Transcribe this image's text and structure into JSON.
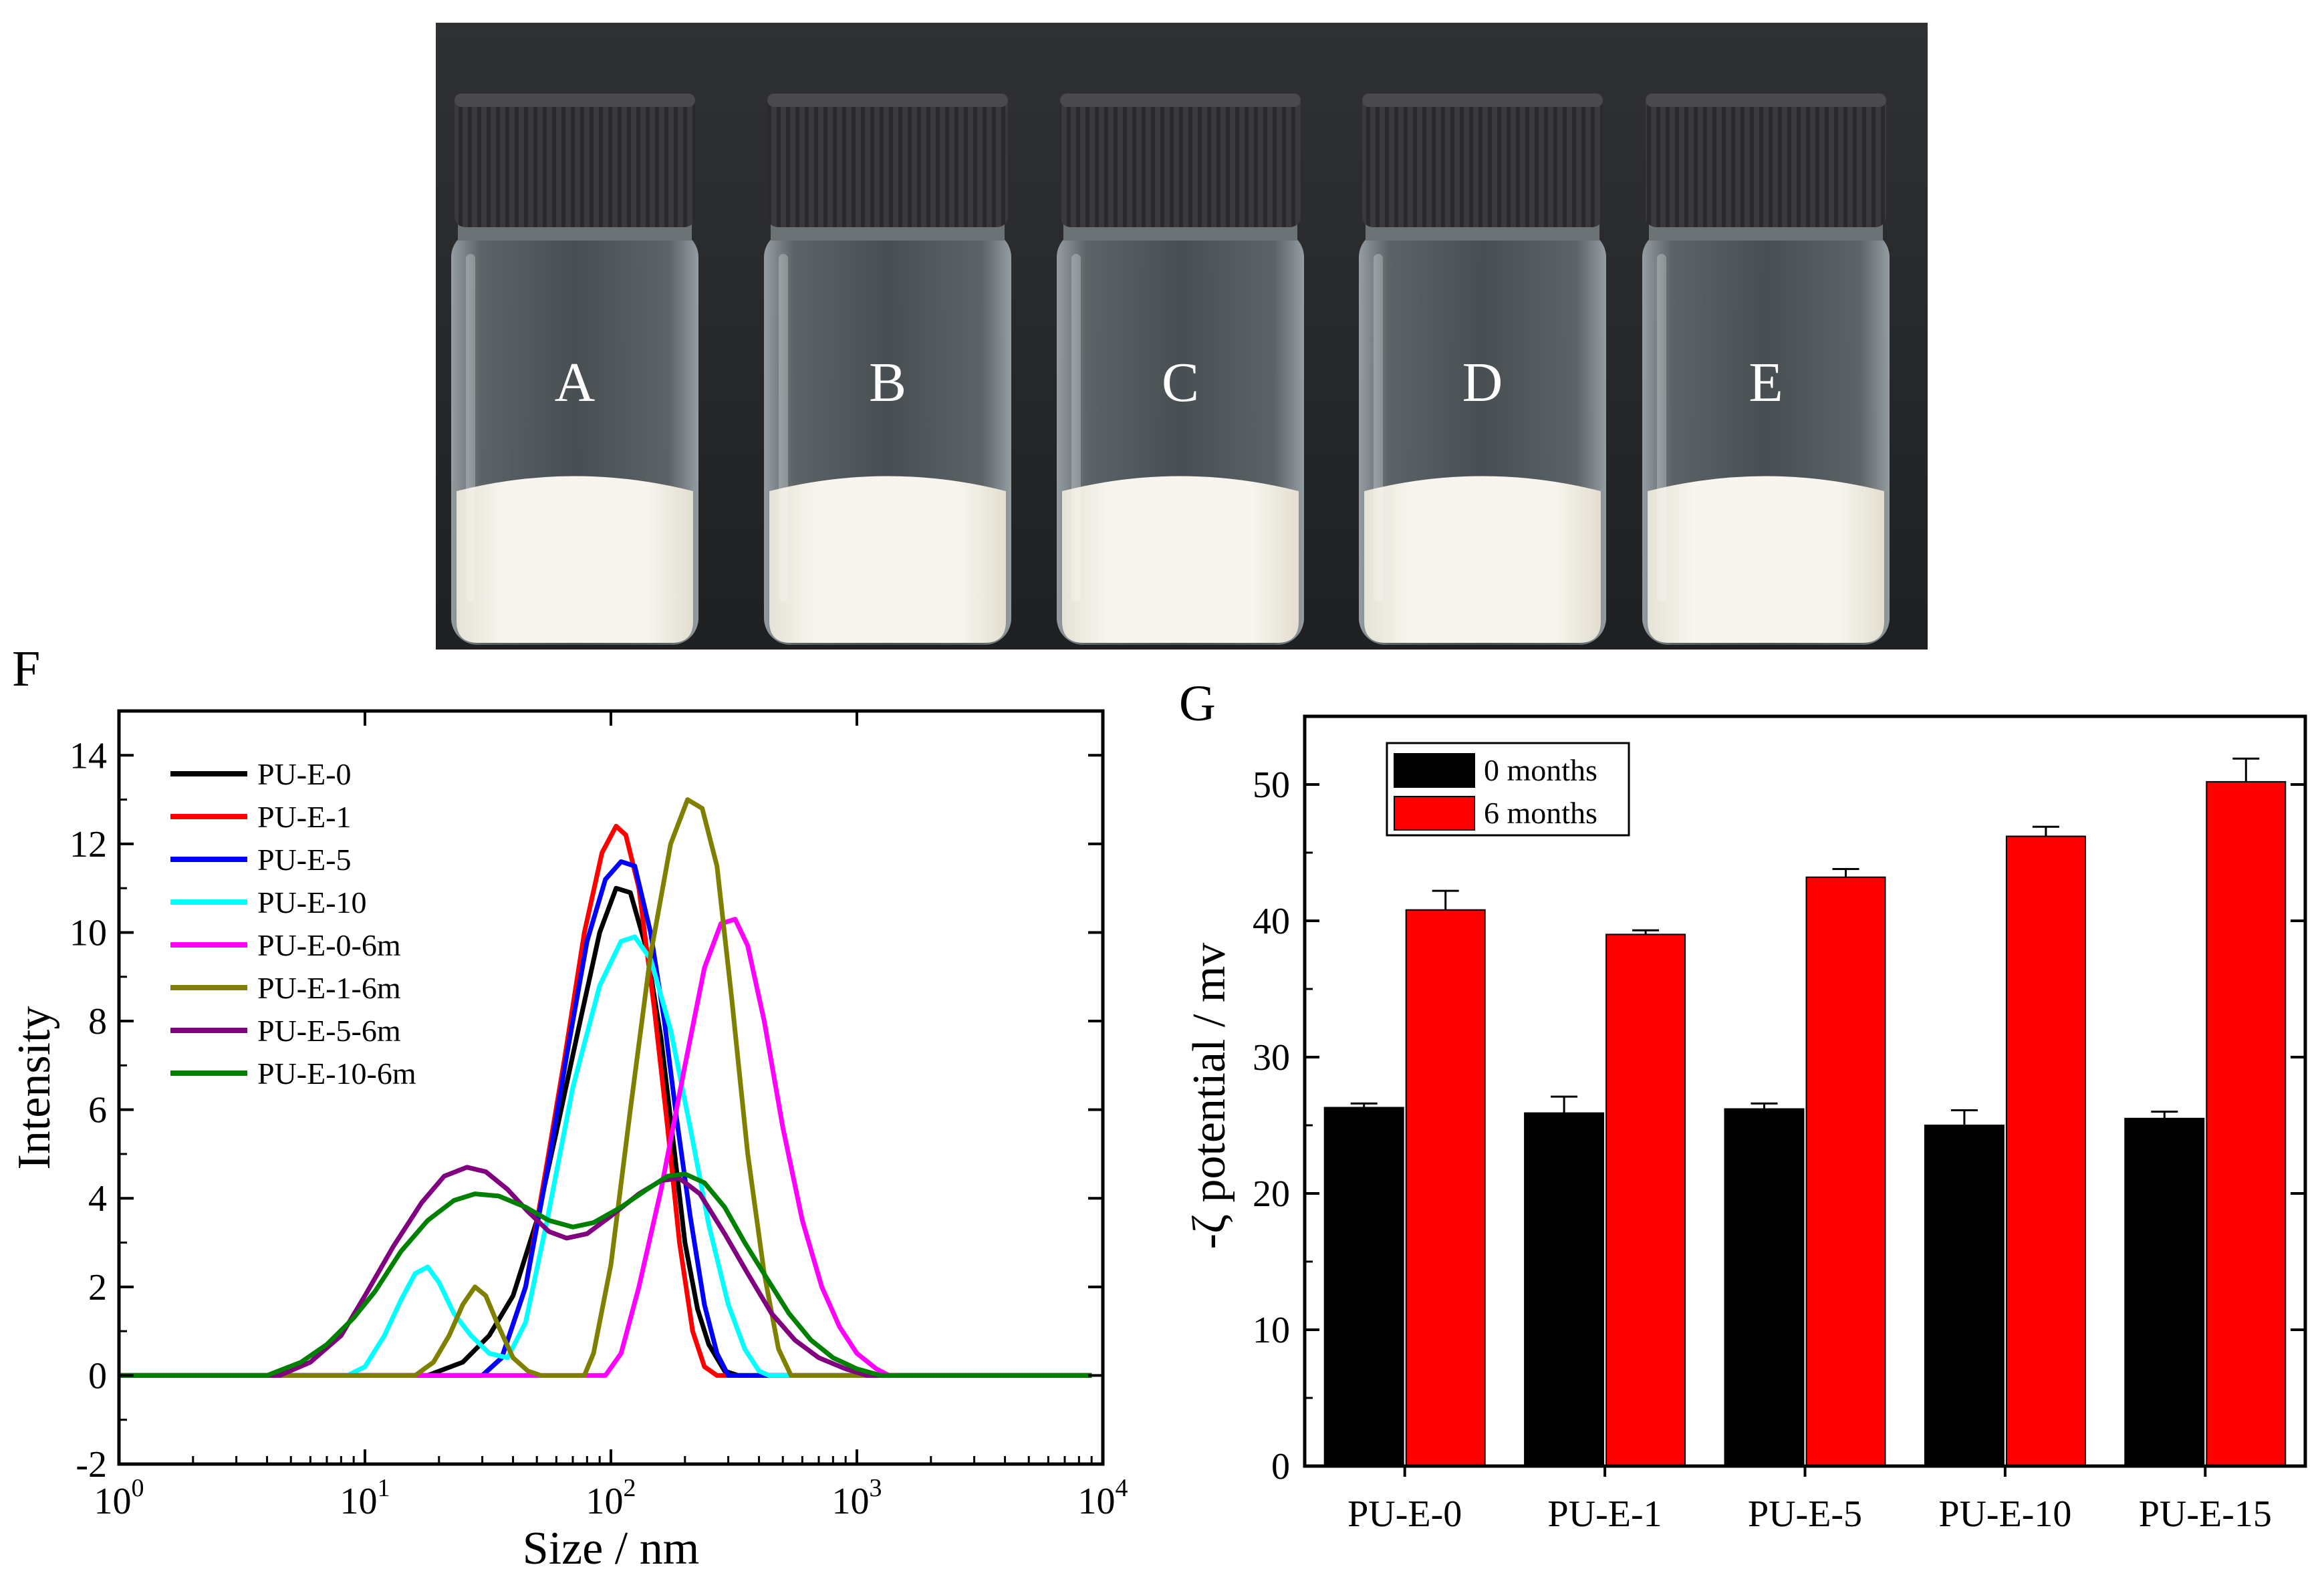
{
  "photo": {
    "vial_labels": [
      "A",
      "B",
      "C",
      "D",
      "E"
    ]
  },
  "panel_labels": {
    "f": "F",
    "g": "G"
  },
  "chart_data": [
    {
      "type": "line",
      "panel": "F",
      "xlabel": "Size / nm",
      "ylabel": "Intensity",
      "x_scale": "log",
      "xlim": [
        1,
        10000
      ],
      "ylim": [
        -2,
        15
      ],
      "x_ticks": [
        {
          "value": 1,
          "base": "10",
          "exp": "0"
        },
        {
          "value": 10,
          "base": "10",
          "exp": "1"
        },
        {
          "value": 100,
          "base": "10",
          "exp": "2"
        },
        {
          "value": 1000,
          "base": "10",
          "exp": "3"
        },
        {
          "value": 10000,
          "base": "10",
          "exp": "4"
        }
      ],
      "y_ticks": [
        "-2",
        "0",
        "2",
        "4",
        "6",
        "8",
        "10",
        "12",
        "14"
      ],
      "legend_position": "top-left",
      "series": [
        {
          "name": "PU-E-0",
          "color": "#000000",
          "points": [
            [
              1,
              0
            ],
            [
              18,
              0
            ],
            [
              25,
              0.3
            ],
            [
              32,
              0.9
            ],
            [
              40,
              1.8
            ],
            [
              50,
              3.5
            ],
            [
              60,
              5.5
            ],
            [
              75,
              8
            ],
            [
              90,
              10
            ],
            [
              105,
              11
            ],
            [
              120,
              10.9
            ],
            [
              140,
              9.6
            ],
            [
              160,
              7.6
            ],
            [
              180,
              5.2
            ],
            [
              200,
              3
            ],
            [
              225,
              1.5
            ],
            [
              250,
              0.7
            ],
            [
              290,
              0.1
            ],
            [
              330,
              0
            ],
            [
              9000,
              0
            ]
          ]
        },
        {
          "name": "PU-E-1",
          "color": "#ff0000",
          "points": [
            [
              1,
              0
            ],
            [
              30,
              0
            ],
            [
              36,
              0.4
            ],
            [
              45,
              2
            ],
            [
              55,
              4.8
            ],
            [
              65,
              7.2
            ],
            [
              78,
              10
            ],
            [
              92,
              11.8
            ],
            [
              105,
              12.4
            ],
            [
              115,
              12.2
            ],
            [
              130,
              11
            ],
            [
              150,
              8.3
            ],
            [
              170,
              5.6
            ],
            [
              190,
              3
            ],
            [
              215,
              1
            ],
            [
              240,
              0.2
            ],
            [
              270,
              0
            ],
            [
              9000,
              0
            ]
          ]
        },
        {
          "name": "PU-E-5",
          "color": "#0000ff",
          "points": [
            [
              1,
              0
            ],
            [
              30,
              0
            ],
            [
              36,
              0.4
            ],
            [
              45,
              2
            ],
            [
              55,
              4.6
            ],
            [
              66,
              7.2
            ],
            [
              80,
              9.8
            ],
            [
              95,
              11.2
            ],
            [
              110,
              11.6
            ],
            [
              125,
              11.5
            ],
            [
              145,
              10
            ],
            [
              165,
              8
            ],
            [
              185,
              5.8
            ],
            [
              210,
              3.6
            ],
            [
              240,
              1.6
            ],
            [
              270,
              0.5
            ],
            [
              300,
              0
            ],
            [
              9000,
              0
            ]
          ]
        },
        {
          "name": "PU-E-10",
          "color": "#00ffff",
          "points": [
            [
              1,
              0
            ],
            [
              8.5,
              0
            ],
            [
              10,
              0.2
            ],
            [
              12,
              0.9
            ],
            [
              14,
              1.7
            ],
            [
              16,
              2.3
            ],
            [
              18,
              2.45
            ],
            [
              20,
              2.1
            ],
            [
              23,
              1.4
            ],
            [
              27,
              0.9
            ],
            [
              32,
              0.5
            ],
            [
              38,
              0.4
            ],
            [
              45,
              1.2
            ],
            [
              55,
              3.5
            ],
            [
              70,
              6.5
            ],
            [
              90,
              8.8
            ],
            [
              110,
              9.8
            ],
            [
              125,
              9.9
            ],
            [
              145,
              9.4
            ],
            [
              175,
              7.8
            ],
            [
              210,
              5.6
            ],
            [
              250,
              3.4
            ],
            [
              300,
              1.6
            ],
            [
              350,
              0.6
            ],
            [
              400,
              0.1
            ],
            [
              440,
              0
            ],
            [
              9000,
              0
            ]
          ]
        },
        {
          "name": "PU-E-0-6m",
          "color": "#ff00ff",
          "points": [
            [
              1,
              0
            ],
            [
              95,
              0
            ],
            [
              110,
              0.5
            ],
            [
              130,
              2
            ],
            [
              160,
              4.2
            ],
            [
              200,
              7
            ],
            [
              240,
              9.2
            ],
            [
              280,
              10.2
            ],
            [
              320,
              10.3
            ],
            [
              360,
              9.7
            ],
            [
              420,
              8
            ],
            [
              500,
              5.6
            ],
            [
              600,
              3.5
            ],
            [
              720,
              2
            ],
            [
              850,
              1.1
            ],
            [
              1000,
              0.5
            ],
            [
              1200,
              0.15
            ],
            [
              1350,
              0
            ],
            [
              9000,
              0
            ]
          ]
        },
        {
          "name": "PU-E-1-6m",
          "color": "#808000",
          "points": [
            [
              1,
              0
            ],
            [
              16,
              0
            ],
            [
              19,
              0.3
            ],
            [
              22,
              0.9
            ],
            [
              25,
              1.6
            ],
            [
              28,
              2
            ],
            [
              31,
              1.8
            ],
            [
              35,
              1.1
            ],
            [
              40,
              0.4
            ],
            [
              46,
              0.1
            ],
            [
              52,
              0
            ],
            [
              78,
              0
            ],
            [
              85,
              0.5
            ],
            [
              100,
              2.5
            ],
            [
              120,
              6
            ],
            [
              145,
              9.5
            ],
            [
              175,
              12
            ],
            [
              205,
              13
            ],
            [
              235,
              12.8
            ],
            [
              270,
              11.5
            ],
            [
              310,
              8.5
            ],
            [
              360,
              5
            ],
            [
              420,
              2.3
            ],
            [
              480,
              0.6
            ],
            [
              540,
              0
            ],
            [
              9000,
              0
            ]
          ]
        },
        {
          "name": "PU-E-5-6m",
          "color": "#800080",
          "points": [
            [
              1,
              0
            ],
            [
              4.5,
              0
            ],
            [
              6,
              0.3
            ],
            [
              8,
              0.9
            ],
            [
              10,
              1.8
            ],
            [
              13,
              2.9
            ],
            [
              17,
              3.9
            ],
            [
              21,
              4.5
            ],
            [
              26,
              4.7
            ],
            [
              31,
              4.6
            ],
            [
              38,
              4.2
            ],
            [
              46,
              3.7
            ],
            [
              56,
              3.25
            ],
            [
              66,
              3.1
            ],
            [
              80,
              3.2
            ],
            [
              100,
              3.6
            ],
            [
              130,
              4.1
            ],
            [
              160,
              4.4
            ],
            [
              190,
              4.45
            ],
            [
              230,
              4.1
            ],
            [
              290,
              3.2
            ],
            [
              360,
              2.3
            ],
            [
              450,
              1.4
            ],
            [
              560,
              0.8
            ],
            [
              700,
              0.4
            ],
            [
              900,
              0.15
            ],
            [
              1100,
              0
            ],
            [
              9000,
              0
            ]
          ]
        },
        {
          "name": "PU-E-10-6m",
          "color": "#008000",
          "points": [
            [
              1,
              0
            ],
            [
              4,
              0
            ],
            [
              5.5,
              0.3
            ],
            [
              7,
              0.7
            ],
            [
              9,
              1.3
            ],
            [
              11,
              1.9
            ],
            [
              14,
              2.8
            ],
            [
              18,
              3.5
            ],
            [
              23,
              3.95
            ],
            [
              28,
              4.1
            ],
            [
              35,
              4.05
            ],
            [
              45,
              3.8
            ],
            [
              56,
              3.5
            ],
            [
              70,
              3.35
            ],
            [
              85,
              3.45
            ],
            [
              110,
              3.8
            ],
            [
              140,
              4.2
            ],
            [
              170,
              4.5
            ],
            [
              200,
              4.55
            ],
            [
              240,
              4.35
            ],
            [
              290,
              3.8
            ],
            [
              350,
              3
            ],
            [
              430,
              2.2
            ],
            [
              530,
              1.4
            ],
            [
              650,
              0.8
            ],
            [
              800,
              0.4
            ],
            [
              1000,
              0.15
            ],
            [
              1250,
              0
            ],
            [
              9000,
              0
            ]
          ]
        }
      ]
    },
    {
      "type": "bar",
      "panel": "G",
      "ylabel": "-ζ potential / mv",
      "xlabel": "",
      "ylim": [
        0,
        55
      ],
      "y_ticks": [
        "0",
        "10",
        "20",
        "30",
        "40",
        "50"
      ],
      "categories": [
        "PU-E-0",
        "PU-E-1",
        "PU-E-5",
        "PU-E-10",
        "PU-E-15"
      ],
      "legend_position": "top-left",
      "series": [
        {
          "name": "0 months",
          "color": "#000000",
          "values": [
            26.3,
            25.9,
            26.2,
            25,
            25.5
          ],
          "errors": [
            0.3,
            1.2,
            0.4,
            1.1,
            0.5
          ]
        },
        {
          "name": "6 months",
          "color": "#ff0000",
          "values": [
            40.8,
            39,
            43.2,
            46.2,
            50.2
          ],
          "errors": [
            1.4,
            0.3,
            0.6,
            0.7,
            1.7
          ]
        }
      ]
    }
  ]
}
